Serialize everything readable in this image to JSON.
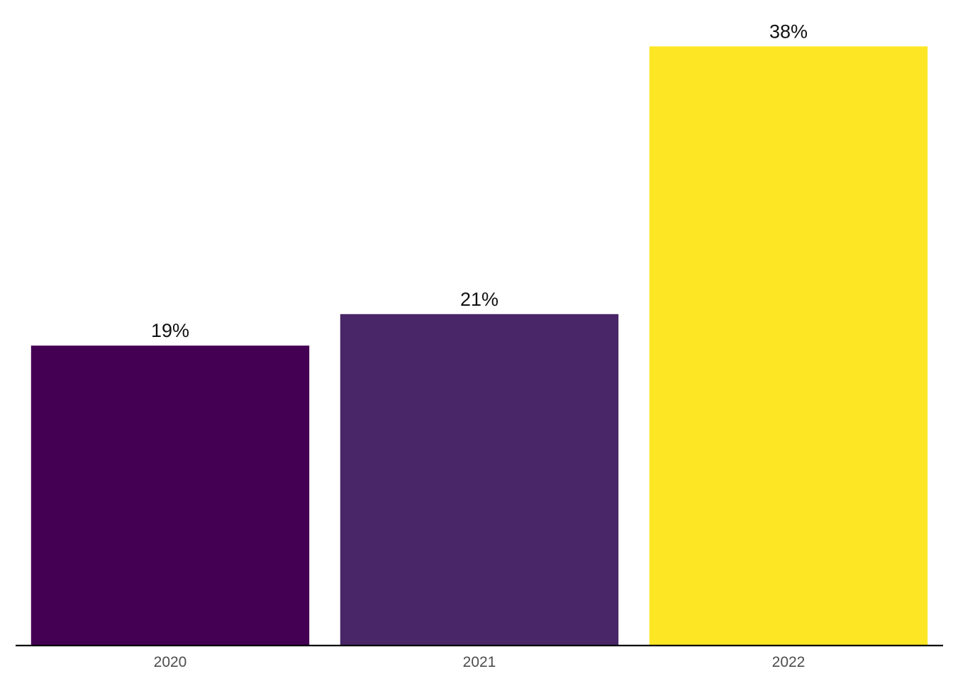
{
  "chart_data": {
    "type": "bar",
    "categories": [
      "2020",
      "2021",
      "2022"
    ],
    "values": [
      19,
      21,
      38
    ],
    "value_labels": [
      "19%",
      "21%",
      "38%"
    ],
    "colors": [
      "#440154",
      "#482667",
      "#FDE725"
    ],
    "axis_color": "#000000",
    "ylim": [
      0,
      40
    ],
    "grid": false,
    "legend": "none",
    "title": "",
    "xlabel": "",
    "ylabel": ""
  }
}
